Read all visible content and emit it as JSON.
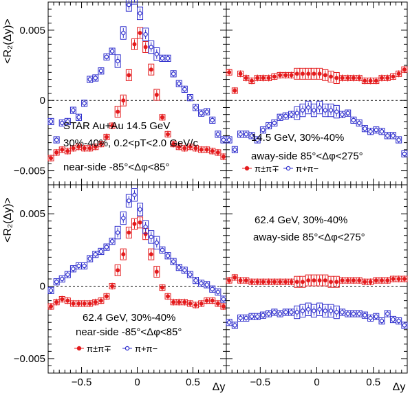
{
  "figure": {
    "y_axis_label": "<R₂(Δy)>",
    "x_axis_label": "Δy",
    "x_tick_labels": [
      "−0.5",
      "0",
      "0.5"
    ],
    "y_tick_labels": [
      "−0.005",
      "0",
      "0.005"
    ],
    "colors": {
      "pm": "#e41a1c",
      "pp": "#2b2bcc"
    }
  },
  "chart_data": [
    {
      "type": "scatter",
      "panel": "top-left",
      "xlim": [
        -0.8,
        0.8
      ],
      "ylim": [
        -0.006,
        0.007
      ],
      "texts": [
        "STAR Au+Au 14.5 GeV",
        "30%-40%, 0.2<pT<2.0 GeV/c",
        "near-side -85°<Δφ<85°"
      ],
      "legend": [],
      "series": [
        {
          "name": "π±π∓",
          "color": "#e41a1c",
          "x": [
            -0.775,
            -0.725,
            -0.675,
            -0.625,
            -0.575,
            -0.525,
            -0.475,
            -0.425,
            -0.375,
            -0.325,
            -0.275,
            -0.225,
            -0.175,
            -0.125,
            -0.075,
            -0.025,
            0.025,
            0.075,
            0.125,
            0.175,
            0.225,
            0.275,
            0.325,
            0.375,
            0.425,
            0.475,
            0.525,
            0.575,
            0.625,
            0.675,
            0.725,
            0.775
          ],
          "y": [
            -0.0041,
            -0.0037,
            -0.0035,
            -0.0036,
            -0.0034,
            -0.0033,
            -0.0034,
            -0.0034,
            -0.0033,
            -0.0031,
            -0.0026,
            -0.0018,
            -0.0008,
            0.0,
            0.0018,
            0.004,
            0.0048,
            0.0038,
            0.0022,
            0.0004,
            -0.0012,
            -0.0024,
            -0.0031,
            -0.0033,
            -0.0034,
            -0.0033,
            -0.0034,
            -0.0035,
            -0.0035,
            -0.0036,
            -0.0037,
            -0.004
          ]
        },
        {
          "name": "π+π−",
          "color": "#2b2bcc",
          "x": [
            -0.775,
            -0.725,
            -0.675,
            -0.625,
            -0.575,
            -0.525,
            -0.475,
            -0.425,
            -0.375,
            -0.325,
            -0.275,
            -0.225,
            -0.175,
            -0.125,
            -0.075,
            -0.025,
            0.025,
            0.075,
            0.125,
            0.175,
            0.225,
            0.275,
            0.325,
            0.375,
            0.425,
            0.475,
            0.525,
            0.575,
            0.625,
            0.675,
            0.725,
            0.775
          ],
          "y": [
            -0.0015,
            -0.0028,
            -0.0016,
            -0.0015,
            -0.0007,
            -0.0012,
            -0.0002,
            0.0015,
            0.0016,
            0.0021,
            0.0031,
            0.0035,
            0.0028,
            0.0048,
            0.0068,
            0.0073,
            0.0062,
            0.0047,
            0.0038,
            0.0033,
            0.003,
            0.003,
            0.0019,
            0.0012,
            0.0008,
            0.0002,
            -0.0005,
            -0.0009,
            -0.0008,
            -0.0014,
            -0.0024,
            -0.0028
          ]
        }
      ]
    },
    {
      "type": "scatter",
      "panel": "top-right",
      "xlim": [
        -0.8,
        0.8
      ],
      "ylim": [
        -0.006,
        0.007
      ],
      "texts": [
        "14.5 GeV, 30%-40%",
        "away-side 85°<Δφ<275°"
      ],
      "legend": [
        "π±π∓",
        "π+π−"
      ],
      "series": [
        {
          "name": "π±π∓",
          "color": "#e41a1c",
          "x": [
            -0.775,
            -0.725,
            -0.675,
            -0.625,
            -0.575,
            -0.525,
            -0.475,
            -0.425,
            -0.375,
            -0.325,
            -0.275,
            -0.225,
            -0.175,
            -0.125,
            -0.075,
            -0.025,
            0.025,
            0.075,
            0.125,
            0.175,
            0.225,
            0.275,
            0.325,
            0.375,
            0.425,
            0.475,
            0.525,
            0.575,
            0.625,
            0.675,
            0.725,
            0.775
          ],
          "y": [
            0.002,
            0.0007,
            0.0019,
            0.0016,
            0.0014,
            0.0016,
            0.0016,
            0.0016,
            0.0017,
            0.0018,
            0.0018,
            0.0018,
            0.0019,
            0.0019,
            0.0019,
            0.0019,
            0.0019,
            0.0018,
            0.0017,
            0.0016,
            0.0016,
            0.0016,
            0.0016,
            0.0016,
            0.0014,
            0.0014,
            0.0014,
            0.0016,
            0.0016,
            0.0017,
            0.0019,
            0.0022
          ]
        },
        {
          "name": "π+π−",
          "color": "#2b2bcc",
          "x": [
            -0.775,
            -0.725,
            -0.675,
            -0.625,
            -0.575,
            -0.525,
            -0.475,
            -0.425,
            -0.375,
            -0.325,
            -0.275,
            -0.225,
            -0.175,
            -0.125,
            -0.075,
            -0.025,
            0.025,
            0.075,
            0.125,
            0.175,
            0.225,
            0.275,
            0.325,
            0.375,
            0.425,
            0.475,
            0.525,
            0.575,
            0.625,
            0.675,
            0.725,
            0.775
          ],
          "y": [
            -0.0028,
            -0.0035,
            -0.0024,
            -0.0024,
            -0.0025,
            -0.0028,
            -0.0021,
            -0.0018,
            -0.0016,
            -0.0012,
            -0.0011,
            -0.001,
            -0.0009,
            -0.0007,
            -0.0005,
            -0.0007,
            -0.0005,
            -0.0007,
            -0.0007,
            -0.0008,
            -0.001,
            -0.0009,
            -0.0014,
            -0.0016,
            -0.002,
            -0.0022,
            -0.0021,
            -0.0022,
            -0.0025,
            -0.0025,
            -0.0028,
            -0.0038
          ]
        }
      ]
    },
    {
      "type": "scatter",
      "panel": "bottom-left",
      "xlim": [
        -0.8,
        0.8
      ],
      "ylim": [
        -0.006,
        0.007
      ],
      "texts": [
        "62.4 GeV, 30%-40%",
        "near-side -85°<Δφ<85°"
      ],
      "legend": [
        "π±π∓",
        "π+π−"
      ],
      "series": [
        {
          "name": "π±π∓",
          "color": "#e41a1c",
          "x": [
            -0.775,
            -0.725,
            -0.675,
            -0.625,
            -0.575,
            -0.525,
            -0.475,
            -0.425,
            -0.375,
            -0.325,
            -0.275,
            -0.225,
            -0.175,
            -0.125,
            -0.075,
            -0.025,
            0.025,
            0.075,
            0.125,
            0.175,
            0.225,
            0.275,
            0.325,
            0.375,
            0.425,
            0.475,
            0.525,
            0.575,
            0.625,
            0.675,
            0.725,
            0.775
          ],
          "y": [
            -0.0014,
            -0.0011,
            -0.0009,
            -0.001,
            -0.0012,
            -0.0012,
            -0.0012,
            -0.0012,
            -0.0011,
            -0.001,
            -0.0007,
            0.0,
            0.0011,
            0.0022,
            0.0037,
            0.0043,
            0.0044,
            0.0036,
            0.0022,
            0.001,
            -0.0001,
            -0.0007,
            -0.0011,
            -0.0011,
            -0.0011,
            -0.0012,
            -0.0013,
            -0.0012,
            -0.001,
            -0.001,
            -0.0012,
            -0.0014
          ]
        },
        {
          "name": "π+π−",
          "color": "#2b2bcc",
          "x": [
            -0.775,
            -0.725,
            -0.675,
            -0.625,
            -0.575,
            -0.525,
            -0.475,
            -0.425,
            -0.375,
            -0.325,
            -0.275,
            -0.225,
            -0.175,
            -0.125,
            -0.075,
            -0.025,
            0.025,
            0.075,
            0.125,
            0.175,
            0.225,
            0.275,
            0.325,
            0.375,
            0.425,
            0.475,
            0.525,
            0.575,
            0.625,
            0.675,
            0.725,
            0.775
          ],
          "y": [
            -0.0003,
            0.0003,
            0.0005,
            0.0008,
            0.0012,
            0.0014,
            0.0014,
            0.0019,
            0.0022,
            0.0024,
            0.0027,
            0.0031,
            0.0037,
            0.0047,
            0.0059,
            0.0063,
            0.0053,
            0.0041,
            0.0034,
            0.003,
            0.0025,
            0.0021,
            0.0017,
            0.0013,
            0.0011,
            0.0008,
            0.0004,
            0.0002,
            0.0001,
            -0.0002,
            -0.0004,
            -0.0009
          ]
        }
      ]
    },
    {
      "type": "scatter",
      "panel": "bottom-right",
      "xlim": [
        -0.8,
        0.8
      ],
      "ylim": [
        -0.006,
        0.007
      ],
      "texts": [
        "62.4 GeV, 30%-40%",
        "away-side 85°<Δφ<275°"
      ],
      "legend": [],
      "series": [
        {
          "name": "π±π∓",
          "color": "#e41a1c",
          "x": [
            -0.775,
            -0.725,
            -0.675,
            -0.625,
            -0.575,
            -0.525,
            -0.475,
            -0.425,
            -0.375,
            -0.325,
            -0.275,
            -0.225,
            -0.175,
            -0.125,
            -0.075,
            -0.025,
            0.025,
            0.075,
            0.125,
            0.175,
            0.225,
            0.275,
            0.325,
            0.375,
            0.425,
            0.475,
            0.525,
            0.575,
            0.625,
            0.675,
            0.725,
            0.775
          ],
          "y": [
            0.0004,
            0.0006,
            0.0004,
            0.0004,
            0.0003,
            0.0003,
            0.0003,
            0.0003,
            0.0003,
            0.0003,
            0.0003,
            0.0003,
            0.0003,
            0.0003,
            0.0004,
            0.0004,
            0.0004,
            0.0004,
            0.0003,
            0.0003,
            0.0004,
            0.0004,
            0.0004,
            0.0004,
            0.0003,
            0.0003,
            0.0004,
            0.0004,
            0.0004,
            0.0005,
            0.0005,
            0.0005
          ]
        },
        {
          "name": "π+π−",
          "color": "#2b2bcc",
          "x": [
            -0.775,
            -0.725,
            -0.675,
            -0.625,
            -0.575,
            -0.525,
            -0.475,
            -0.425,
            -0.375,
            -0.325,
            -0.275,
            -0.225,
            -0.175,
            -0.125,
            -0.075,
            -0.025,
            0.025,
            0.075,
            0.125,
            0.175,
            0.225,
            0.275,
            0.325,
            0.375,
            0.425,
            0.475,
            0.525,
            0.575,
            0.625,
            0.675,
            0.725,
            0.775
          ],
          "y": [
            -0.0025,
            -0.0027,
            -0.0022,
            -0.0022,
            -0.0021,
            -0.0021,
            -0.002,
            -0.0019,
            -0.0018,
            -0.0019,
            -0.0018,
            -0.0018,
            -0.0018,
            -0.0017,
            -0.0016,
            -0.0017,
            -0.0016,
            -0.0017,
            -0.0017,
            -0.0018,
            -0.0018,
            -0.0019,
            -0.0019,
            -0.0019,
            -0.002,
            -0.0022,
            -0.0021,
            -0.0024,
            -0.0019,
            -0.0023,
            -0.0024,
            -0.0027
          ]
        }
      ]
    }
  ]
}
